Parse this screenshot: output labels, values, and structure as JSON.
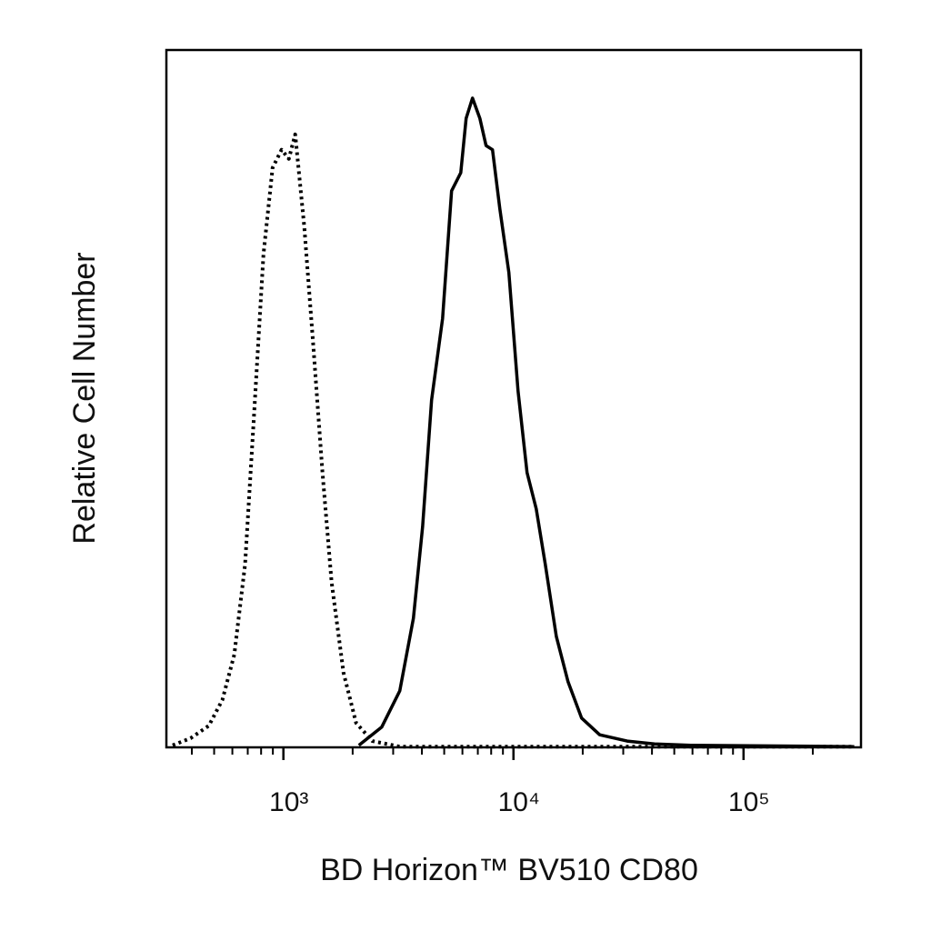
{
  "chart_data": {
    "type": "histogram-line",
    "x_label": "BD Horizon™ BV510 CD80",
    "y_label": "Relative Cell Number",
    "xscale": "log",
    "xlim": [
      310,
      324000
    ],
    "ylim": [
      0,
      100
    ],
    "xticks": [
      {
        "value": 1000,
        "label": "10³"
      },
      {
        "value": 10000,
        "label": "10⁴"
      },
      {
        "value": 100000,
        "label": "10⁵"
      }
    ],
    "xminorticks": [
      400,
      500,
      600,
      700,
      800,
      900,
      2000,
      3000,
      4000,
      5000,
      6000,
      7000,
      8000,
      9000,
      20000,
      30000,
      40000,
      50000,
      60000,
      70000,
      80000,
      90000,
      200000
    ],
    "series": [
      {
        "color": "#000000",
        "line_style": "dotted",
        "x": [
          330,
          395,
          474,
          543,
          612,
          682,
          748,
          819,
          897,
          982,
          1056,
          1125,
          1233,
          1349,
          1479,
          1619,
          1824,
          2070,
          2438,
          3206,
          34200,
          303000
        ],
        "values": [
          0.3,
          1.3,
          3.1,
          6.8,
          13.3,
          26.3,
          48.5,
          70.7,
          83.1,
          85.7,
          84.4,
          87.9,
          74.6,
          57.6,
          39.4,
          23.7,
          10.7,
          3.5,
          0.9,
          0.1,
          0.1,
          0.1
        ]
      },
      {
        "color": "#000000",
        "line_style": "solid",
        "x": [
          2128,
          2673,
          3206,
          3673,
          4027,
          4406,
          4920,
          5383,
          5902,
          6227,
          6637,
          7141,
          7603,
          8110,
          8730,
          9550,
          10470,
          11460,
          12560,
          13740,
          15350,
          17270,
          19780,
          23710,
          31190,
          41020,
          59020,
          303000
        ],
        "values": [
          0.3,
          2.9,
          8.1,
          18.5,
          31.6,
          49.8,
          61.5,
          79.8,
          82.4,
          90.2,
          93.1,
          90.2,
          86.3,
          85.7,
          77.2,
          68.1,
          51.1,
          39.4,
          34.2,
          26.3,
          15.9,
          9.4,
          4.2,
          1.8,
          0.9,
          0.5,
          0.3,
          0.1
        ]
      }
    ]
  }
}
